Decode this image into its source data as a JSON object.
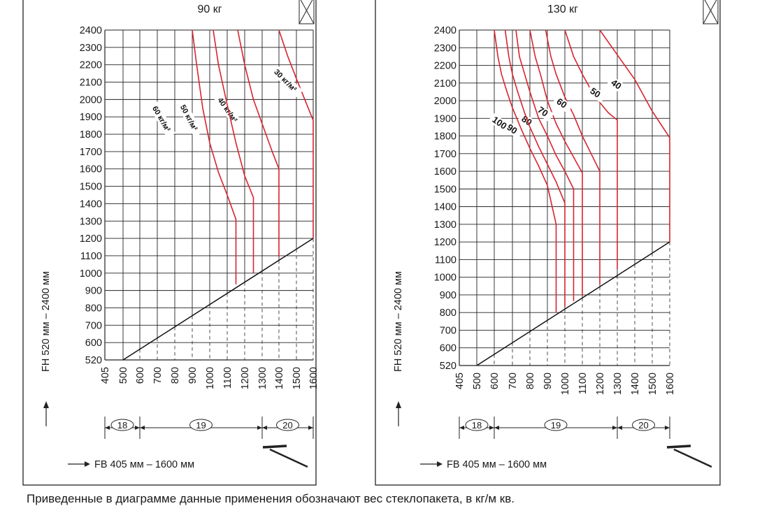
{
  "caption": "Приведенные в диаграмме данные применения обозначают вес стеклопакета, в кг/м кв.",
  "chart_data": [
    {
      "type": "line",
      "title": "90 кг",
      "ylabel": "FH 520 мм – 2400 мм",
      "xlabel": "FB 405 мм – 1600 мм",
      "y_ticks": [
        "520",
        "600",
        "700",
        "800",
        "900",
        "1000",
        "1100",
        "1200",
        "1300",
        "1400",
        "1500",
        "1600",
        "1700",
        "1800",
        "1900",
        "2000",
        "2100",
        "2200",
        "2300",
        "2400"
      ],
      "x_ticks": [
        "405",
        "500",
        "600",
        "700",
        "800",
        "900",
        "1000",
        "1100",
        "1200",
        "1300",
        "1400",
        "1500",
        "1600"
      ],
      "ylim": [
        520,
        2400
      ],
      "xlim": [
        405,
        1600
      ],
      "grid": true,
      "ranges": [
        {
          "label": "18",
          "from": 405,
          "to": 600
        },
        {
          "label": "19",
          "from": 600,
          "to": 1300
        },
        {
          "label": "20",
          "from": 1300,
          "to": 1600
        }
      ],
      "boundary": {
        "x": [
          500,
          1600
        ],
        "y": [
          520,
          1200
        ]
      },
      "series": [
        {
          "name": "30 кг/м²",
          "x": [
            1400,
            1450,
            1500,
            1550,
            1600,
            1600
          ],
          "y": [
            2400,
            2250,
            2120,
            2000,
            1880,
            1200
          ]
        },
        {
          "name": "40 кг/м²",
          "x": [
            1160,
            1200,
            1250,
            1300,
            1360,
            1400,
            1400
          ],
          "y": [
            2400,
            2200,
            2000,
            1860,
            1700,
            1600,
            1095
          ]
        },
        {
          "name": "50 кг/м²",
          "x": [
            1020,
            1050,
            1100,
            1150,
            1200,
            1250,
            1250
          ],
          "y": [
            2400,
            2200,
            1970,
            1750,
            1560,
            1435,
            1000
          ]
        },
        {
          "name": "60 кг/м²",
          "x": [
            900,
            925,
            960,
            1000,
            1050,
            1100,
            1150,
            1150
          ],
          "y": [
            2400,
            2200,
            1950,
            1750,
            1580,
            1450,
            1310,
            935
          ]
        }
      ]
    },
    {
      "type": "line",
      "title": "130 кг",
      "ylabel": "FH 520 мм – 2400 мм",
      "xlabel": "FB 405 мм – 1600 мм",
      "y_ticks": [
        "520",
        "600",
        "700",
        "800",
        "900",
        "1000",
        "1100",
        "1200",
        "1300",
        "1400",
        "1500",
        "1600",
        "1700",
        "1800",
        "1900",
        "2000",
        "2100",
        "2200",
        "2300",
        "2400"
      ],
      "x_ticks": [
        "405",
        "500",
        "600",
        "700",
        "800",
        "900",
        "1000",
        "1100",
        "1200",
        "1300",
        "1400",
        "1500",
        "1600"
      ],
      "ylim": [
        520,
        2400
      ],
      "xlim": [
        405,
        1600
      ],
      "grid": true,
      "ranges": [
        {
          "label": "18",
          "from": 405,
          "to": 600
        },
        {
          "label": "19",
          "from": 600,
          "to": 1300
        },
        {
          "label": "20",
          "from": 1300,
          "to": 1600
        }
      ],
      "boundary": {
        "x": [
          500,
          1600
        ],
        "y": [
          520,
          1200
        ]
      },
      "series": [
        {
          "name": "40",
          "x": [
            1200,
            1300,
            1400,
            1500,
            1600,
            1600
          ],
          "y": [
            2400,
            2260,
            2120,
            1940,
            1790,
            1200
          ]
        },
        {
          "name": "50",
          "x": [
            1000,
            1050,
            1100,
            1150,
            1200,
            1250,
            1300,
            1300
          ],
          "y": [
            2400,
            2250,
            2150,
            2060,
            1990,
            1930,
            1890,
            1045
          ]
        },
        {
          "name": "60",
          "x": [
            890,
            920,
            950,
            1000,
            1050,
            1100,
            1150,
            1200,
            1200
          ],
          "y": [
            2400,
            2250,
            2150,
            2020,
            1920,
            1800,
            1700,
            1600,
            960
          ]
        },
        {
          "name": "70",
          "x": [
            800,
            830,
            860,
            900,
            950,
            1000,
            1050,
            1100,
            1100
          ],
          "y": [
            2400,
            2250,
            2150,
            2000,
            1870,
            1770,
            1680,
            1590,
            895
          ]
        },
        {
          "name": "80",
          "x": [
            720,
            740,
            770,
            800,
            850,
            900,
            950,
            1000,
            1050,
            1050
          ],
          "y": [
            2400,
            2250,
            2150,
            2050,
            1900,
            1800,
            1690,
            1600,
            1500,
            865
          ]
        },
        {
          "name": "90",
          "x": [
            660,
            680,
            700,
            730,
            770,
            800,
            850,
            900,
            950,
            1000,
            1000
          ],
          "y": [
            2400,
            2250,
            2150,
            2050,
            1930,
            1850,
            1740,
            1640,
            1540,
            1420,
            835
          ]
        },
        {
          "name": "100",
          "x": [
            600,
            620,
            640,
            670,
            700,
            750,
            800,
            850,
            900,
            950,
            950
          ],
          "y": [
            2400,
            2250,
            2150,
            2050,
            1960,
            1840,
            1730,
            1630,
            1520,
            1300,
            800
          ]
        }
      ]
    }
  ]
}
